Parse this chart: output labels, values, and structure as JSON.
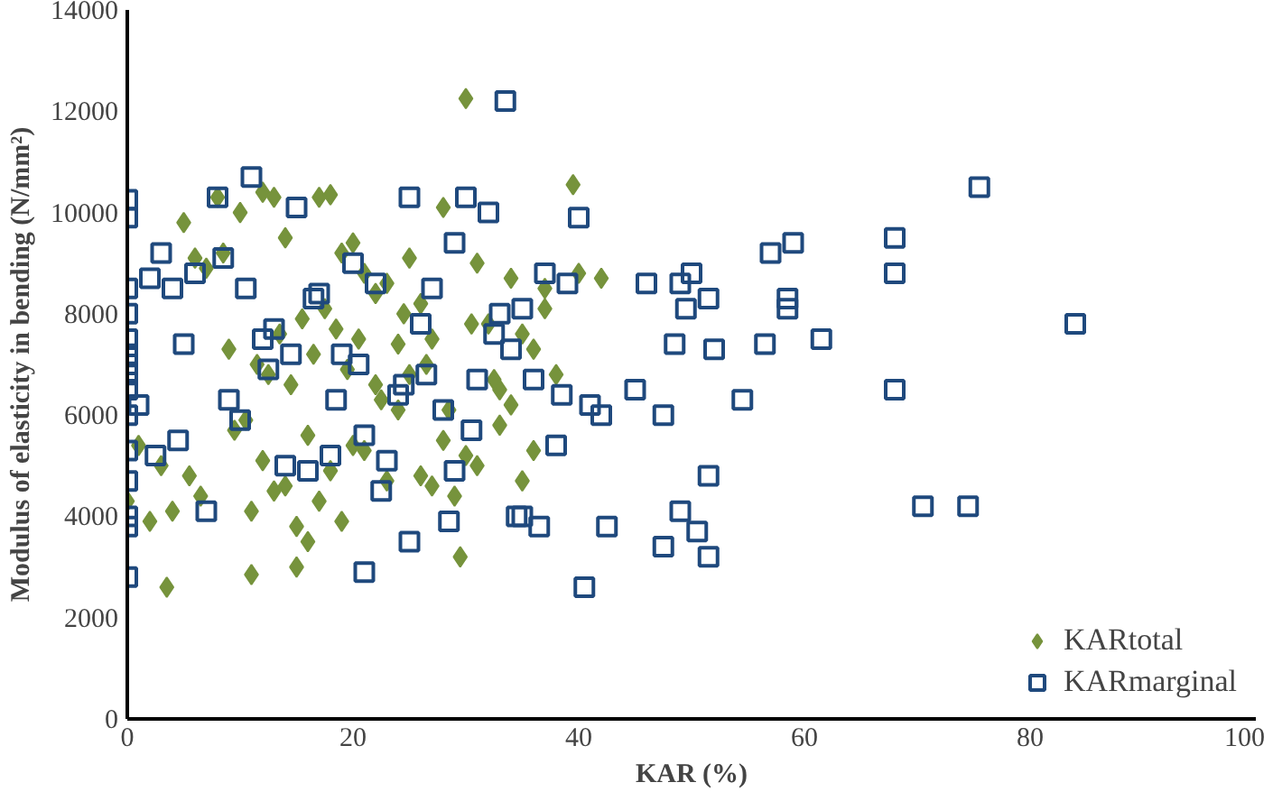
{
  "chart_data": {
    "type": "scatter",
    "xlabel": "KAR (%)",
    "ylabel": "Modulus of elasticity in bending (N/mm²)",
    "xlim": [
      0,
      100
    ],
    "ylim": [
      0,
      14000
    ],
    "xticks": [
      0,
      20,
      40,
      60,
      80,
      100
    ],
    "yticks": [
      0,
      2000,
      4000,
      6000,
      8000,
      10000,
      12000,
      14000
    ],
    "grid": false,
    "legend": "bottom right",
    "series": [
      {
        "name": "KARtotal",
        "color": "#76933c",
        "marker": "diamond",
        "x": [
          30,
          39.5,
          3.5,
          11,
          29.5,
          15,
          16,
          40,
          42,
          8,
          10,
          12,
          13,
          14,
          17,
          18,
          19,
          20,
          21,
          22,
          23,
          24,
          25,
          26,
          27,
          28,
          31,
          32,
          33,
          34,
          35,
          36,
          37,
          38,
          5,
          6,
          7,
          9,
          11.5,
          12.5,
          13.5,
          14.5,
          15.5,
          16.5,
          17.5,
          18.5,
          19.5,
          20.5,
          22.5,
          24.5,
          26.5,
          28.5,
          30.5,
          32.5,
          0,
          1,
          2,
          4,
          6.5,
          9.5,
          10.5,
          12,
          14,
          16,
          18,
          20,
          22,
          24,
          26,
          28,
          30,
          33,
          35,
          37,
          8.5,
          11,
          13,
          15,
          17,
          19,
          21,
          23,
          25,
          27,
          29,
          31,
          34,
          36,
          3,
          5.5
        ],
        "values": [
          12250,
          10550,
          2600,
          2850,
          3200,
          3000,
          3500,
          8800,
          8700,
          10300,
          10000,
          10400,
          10300,
          9500,
          10300,
          10350,
          9200,
          9400,
          8800,
          8400,
          8600,
          7400,
          9100,
          8200,
          7500,
          10100,
          9000,
          7800,
          6500,
          8700,
          7600,
          5300,
          8100,
          6800,
          9800,
          9100,
          8900,
          7300,
          7000,
          6800,
          7600,
          6600,
          7900,
          7200,
          8100,
          7700,
          6900,
          7500,
          6300,
          8000,
          7000,
          6100,
          7800,
          6700,
          4300,
          5400,
          3900,
          4100,
          4400,
          5700,
          5900,
          5100,
          4600,
          5600,
          4900,
          5400,
          6600,
          6100,
          4800,
          5500,
          5200,
          5800,
          4700,
          8500,
          9200,
          4100,
          4500,
          3800,
          4300,
          3900,
          5300,
          4700,
          6800,
          4600,
          4400,
          5000,
          6200,
          7300,
          5000,
          4800
        ]
      },
      {
        "name": "KARmarginal",
        "color": "#1f497d",
        "marker": "square",
        "x": [
          0,
          0,
          0,
          0,
          0,
          0,
          0,
          0,
          0,
          0,
          0,
          0,
          0,
          0,
          0,
          33.5,
          75.5,
          84,
          68,
          68,
          68,
          70.5,
          74.5,
          59,
          57,
          58.5,
          58.5,
          61.5,
          56.5,
          48.5,
          54.5,
          51.5,
          49,
          51.5,
          50.5,
          47.5,
          47.5,
          49,
          50,
          51.5,
          49.5,
          52,
          46,
          42.5,
          45,
          1,
          2,
          3,
          4,
          5,
          6,
          7,
          8,
          9,
          10,
          11,
          12,
          13,
          14,
          15,
          16,
          17,
          18,
          19,
          20,
          21,
          22,
          23,
          24,
          25,
          26,
          27,
          28,
          29,
          30,
          31,
          32,
          33,
          34,
          35,
          36,
          37,
          38,
          39,
          40,
          41,
          2.5,
          4.5,
          8.5,
          10.5,
          12.5,
          14.5,
          16.5,
          18.5,
          20.5,
          22.5,
          24.5,
          26.5,
          28.5,
          30.5,
          32.5,
          34.5,
          36.5,
          38.5,
          40.5,
          21,
          25,
          29,
          35,
          42
        ],
        "values": [
          2800,
          3800,
          4000,
          4700,
          5300,
          6000,
          6500,
          6800,
          7000,
          7200,
          7500,
          8000,
          8500,
          9900,
          10250,
          12200,
          10500,
          7800,
          9500,
          8800,
          6500,
          4200,
          4200,
          9400,
          9200,
          8300,
          8100,
          7500,
          7400,
          7400,
          6300,
          4800,
          4100,
          3200,
          3700,
          3400,
          6000,
          8600,
          8800,
          8300,
          8100,
          7300,
          8600,
          3800,
          6500,
          6200,
          8700,
          9200,
          8500,
          7400,
          8800,
          4100,
          10300,
          6300,
          5900,
          10700,
          7500,
          7700,
          5000,
          10100,
          4900,
          8400,
          5200,
          7200,
          9000,
          5600,
          8600,
          5100,
          6400,
          10300,
          7800,
          8500,
          6100,
          9400,
          10300,
          6700,
          10000,
          8000,
          7300,
          8100,
          6700,
          8800,
          5400,
          8600,
          9900,
          6200,
          5200,
          5500,
          9100,
          8500,
          6900,
          7200,
          8300,
          6300,
          7000,
          4500,
          6600,
          6800,
          3900,
          5700,
          7600,
          4000,
          3800,
          6400,
          2600,
          2900,
          3500,
          4900,
          4000,
          6000
        ]
      }
    ]
  }
}
